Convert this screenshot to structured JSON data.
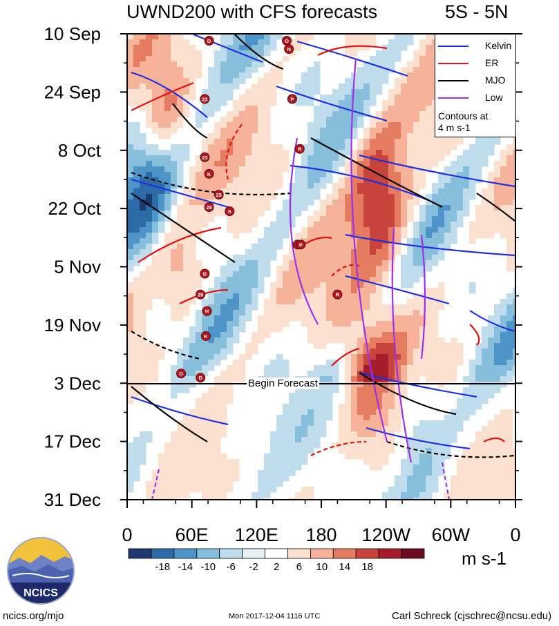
{
  "title": "UWND200 with CFS forecasts",
  "region": "5S - 5N",
  "chart_data": {
    "type": "heatmap",
    "title": "UWND200 with CFS forecasts",
    "subtitle": "5S - 5N",
    "x_ticks": [
      "0",
      "60E",
      "120E",
      "180",
      "120W",
      "60W",
      "0"
    ],
    "x_range_deg_east": [
      0,
      360
    ],
    "y_ticks": [
      "10 Sep",
      "24 Sep",
      "8 Oct",
      "22 Oct",
      "5 Nov",
      "19 Nov",
      "3 Dec",
      "17 Dec",
      "31 Dec"
    ],
    "y_range": [
      "10 Sep",
      "31 Dec"
    ],
    "units": "m s-1",
    "colorbar_levels": [
      -18,
      -14,
      -10,
      -6,
      -2,
      2,
      6,
      10,
      14,
      18
    ],
    "colorbar_labels": [
      "-18",
      "-14",
      "-10",
      "-6",
      "-2",
      "2",
      "6",
      "10",
      "14",
      "18"
    ],
    "colorbar_colors": [
      "#1f3a6e",
      "#2c6aa8",
      "#4d95c9",
      "#86bedc",
      "#bfdcec",
      "#e6f1f7",
      "#ffffff",
      "#fce0cf",
      "#f6b39a",
      "#e57c62",
      "#c8433b",
      "#a51d2a",
      "#6a0a1f"
    ],
    "legend": [
      {
        "label": "Kelvin",
        "color": "#1f2fe0"
      },
      {
        "label": "ER",
        "color": "#e01010"
      },
      {
        "label": "MJO",
        "color": "#000000"
      },
      {
        "label": "Low",
        "color": "#9b30e8"
      }
    ],
    "legend_note": [
      "Contours at",
      "4 m s-1"
    ],
    "forecast_start": "3 Dec",
    "forecast_label": "Begin Forecast",
    "storm_markers": [
      {
        "label": "D",
        "lon": 76,
        "date_day": 0
      },
      {
        "label": "O",
        "lon": 148,
        "date_day": 0
      },
      {
        "label": "N",
        "lon": 150,
        "date_day": 2
      },
      {
        "label": "22",
        "lon": 72,
        "date_day": 14
      },
      {
        "label": "P",
        "lon": 153,
        "date_day": 14
      },
      {
        "label": "R",
        "lon": 160,
        "date_day": 26
      },
      {
        "label": "23",
        "lon": 72,
        "date_day": 28
      },
      {
        "label": "K",
        "lon": 76,
        "date_day": 32
      },
      {
        "label": "25",
        "lon": 85,
        "date_day": 37
      },
      {
        "label": "28",
        "lon": 76,
        "date_day": 40
      },
      {
        "label": "S",
        "lon": 95,
        "date_day": 41
      },
      {
        "label": "S",
        "lon": 158,
        "date_day": 49
      },
      {
        "label": "P",
        "lon": 161,
        "date_day": 49
      },
      {
        "label": "D",
        "lon": 72,
        "date_day": 56
      },
      {
        "label": "29",
        "lon": 68,
        "date_day": 61
      },
      {
        "label": "R",
        "lon": 195,
        "date_day": 61
      },
      {
        "label": "H",
        "lon": 74,
        "date_day": 65
      },
      {
        "label": "K",
        "lon": 73,
        "date_day": 71
      },
      {
        "label": "O",
        "lon": 50,
        "date_day": 80
      },
      {
        "label": "D",
        "lon": 68,
        "date_day": 81
      }
    ]
  },
  "footer": {
    "left": "ncics.org/mjo",
    "middle": "Mon 2017-12-04 1116 UTC",
    "right": "Carl Schreck (cjschrec@ncsu.edu)"
  },
  "logo_text": "NCICS"
}
